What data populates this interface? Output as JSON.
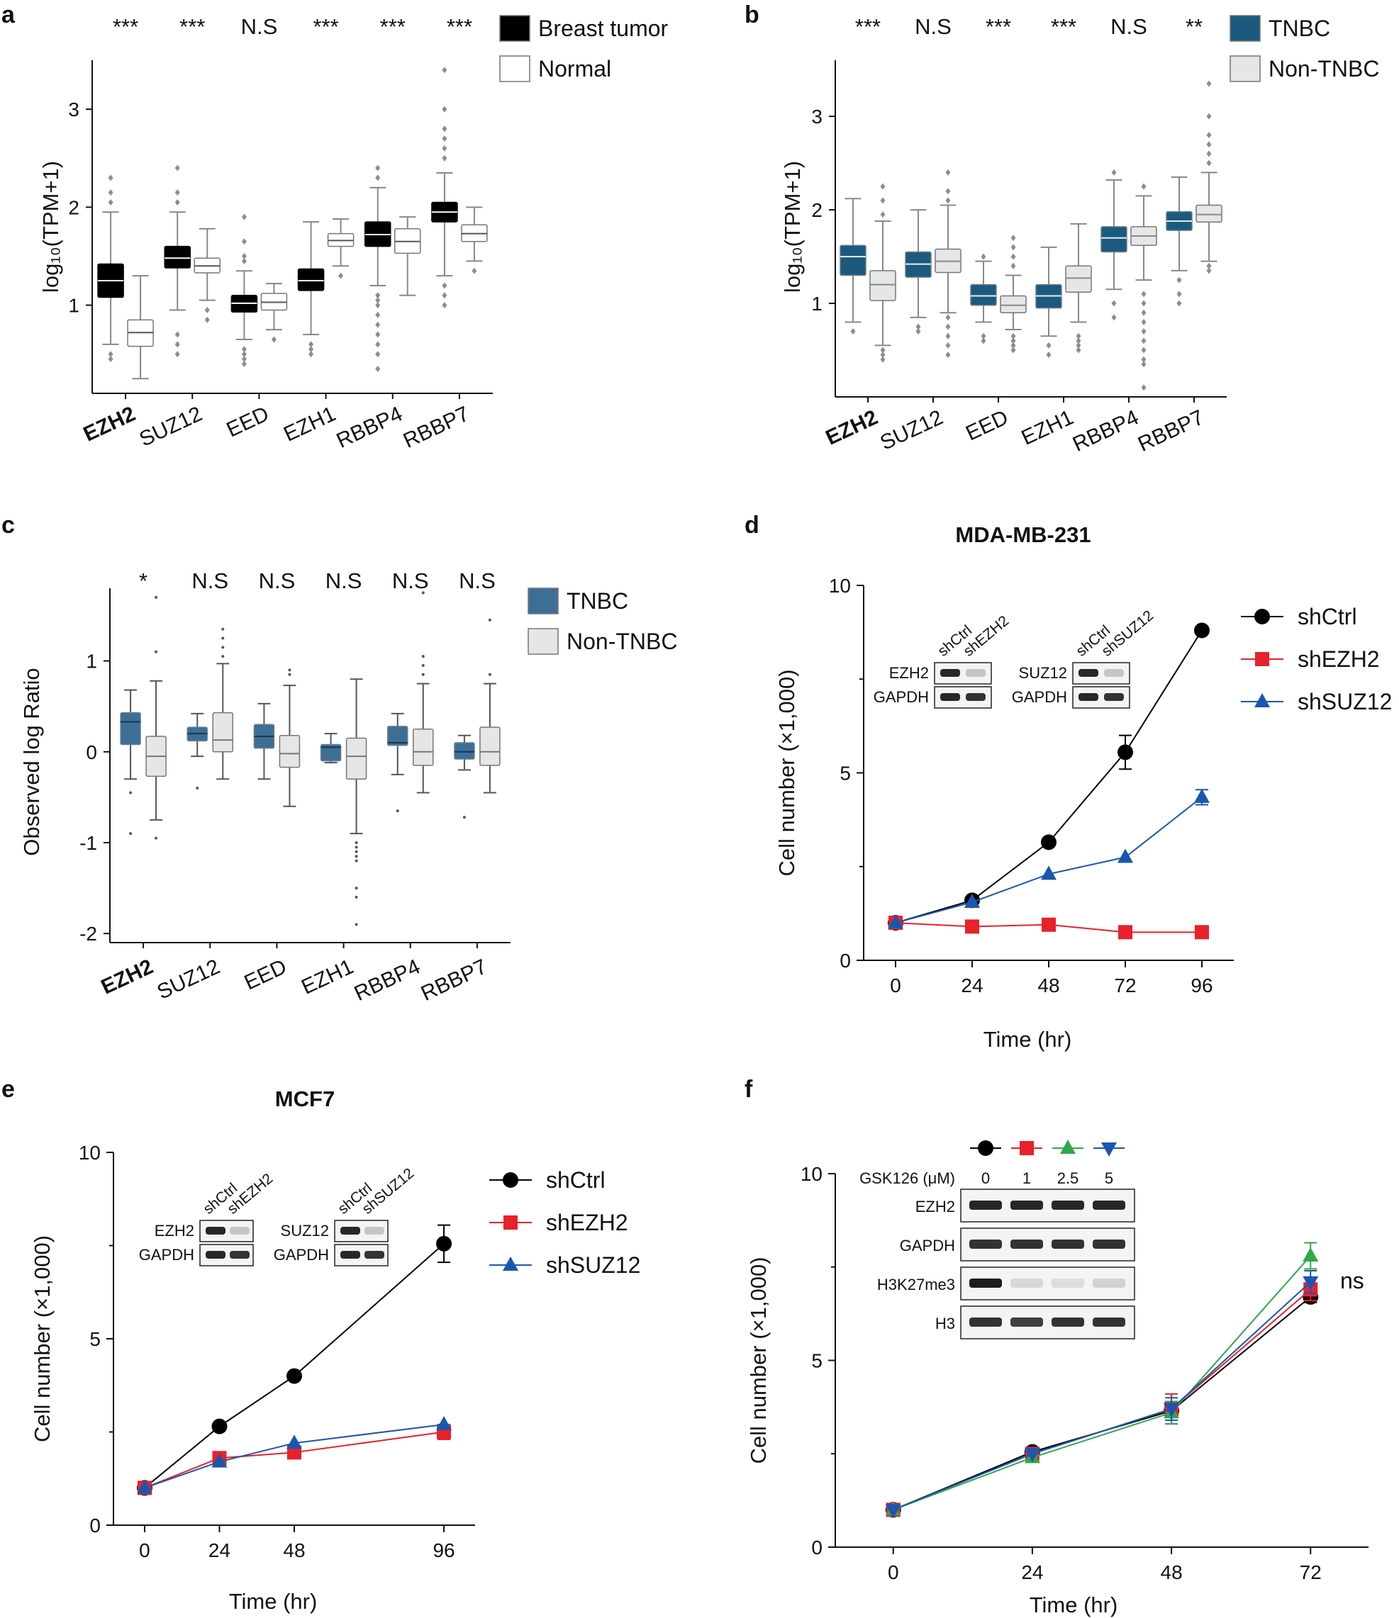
{
  "figure": {
    "panel_letters": [
      "a",
      "b",
      "c",
      "d",
      "e",
      "f"
    ]
  },
  "chart_data": [
    {
      "id": "a",
      "type": "box",
      "ylabel": "log₁₀(TPM+1)",
      "ylim": [
        0.1,
        3.5
      ],
      "yticks": [
        1,
        2,
        3
      ],
      "categories": [
        "EZH2",
        "SUZ12",
        "EED",
        "EZH1",
        "RBBP4",
        "RBBP7"
      ],
      "bold_category": "EZH2",
      "significance": [
        "***",
        "***",
        "N.S",
        "***",
        "***",
        "***"
      ],
      "legend": [
        "Breast tumor",
        "Normal"
      ],
      "colors": {
        "group1": "#000000",
        "group2": "#ffffff",
        "median1": "#ffffff",
        "median2": "#555555",
        "stroke": "#888888"
      },
      "series": [
        {
          "name": "Breast tumor",
          "boxes": [
            {
              "whislo": 0.6,
              "q1": 1.08,
              "med": 1.25,
              "q3": 1.42,
              "whishi": 1.95,
              "out": [
                0.5,
                0.45,
                2.05,
                2.15,
                2.3
              ]
            },
            {
              "whislo": 0.95,
              "q1": 1.38,
              "med": 1.48,
              "q3": 1.6,
              "whishi": 1.95,
              "out": [
                0.6,
                0.5,
                0.7,
                2.05,
                2.15,
                2.4
              ]
            },
            {
              "whislo": 0.65,
              "q1": 0.93,
              "med": 1.02,
              "q3": 1.1,
              "whishi": 1.35,
              "out": [
                0.4,
                0.45,
                0.5,
                0.55,
                1.45,
                1.5,
                1.65,
                1.9
              ]
            },
            {
              "whislo": 0.7,
              "q1": 1.15,
              "med": 1.25,
              "q3": 1.37,
              "whishi": 1.85,
              "out": [
                0.5,
                0.55,
                0.6
              ]
            },
            {
              "whislo": 1.2,
              "q1": 1.6,
              "med": 1.72,
              "q3": 1.85,
              "whishi": 2.2,
              "out": [
                0.35,
                0.5,
                0.6,
                0.7,
                0.8,
                0.9,
                1.0,
                1.05,
                1.1,
                2.3,
                2.4
              ]
            },
            {
              "whislo": 1.3,
              "q1": 1.85,
              "med": 1.95,
              "q3": 2.05,
              "whishi": 2.35,
              "out": [
                1.0,
                1.1,
                1.2,
                2.5,
                2.6,
                2.7,
                2.8,
                3.0,
                3.4
              ]
            }
          ]
        },
        {
          "name": "Normal",
          "boxes": [
            {
              "whislo": 0.25,
              "q1": 0.58,
              "med": 0.72,
              "q3": 0.85,
              "whishi": 1.3,
              "out": []
            },
            {
              "whislo": 1.05,
              "q1": 1.33,
              "med": 1.4,
              "q3": 1.48,
              "whishi": 1.78,
              "out": [
                0.85,
                0.95
              ]
            },
            {
              "whislo": 0.75,
              "q1": 0.95,
              "med": 1.03,
              "q3": 1.12,
              "whishi": 1.22,
              "out": [
                0.65
              ]
            },
            {
              "whislo": 1.4,
              "q1": 1.6,
              "med": 1.66,
              "q3": 1.73,
              "whishi": 1.88,
              "out": [
                1.3
              ]
            },
            {
              "whislo": 1.1,
              "q1": 1.53,
              "med": 1.65,
              "q3": 1.78,
              "whishi": 1.9,
              "out": []
            },
            {
              "whislo": 1.45,
              "q1": 1.65,
              "med": 1.73,
              "q3": 1.82,
              "whishi": 2.0,
              "out": [
                1.35
              ]
            }
          ]
        }
      ]
    },
    {
      "id": "b",
      "type": "box",
      "ylabel": "log₁₀(TPM+1)",
      "ylim": [
        0.0,
        3.6
      ],
      "yticks": [
        1,
        2,
        3
      ],
      "categories": [
        "EZH2",
        "SUZ12",
        "EED",
        "EZH1",
        "RBBP4",
        "RBBP7"
      ],
      "bold_category": "EZH2",
      "significance": [
        "***",
        "N.S",
        "***",
        "***",
        "N.S",
        "**"
      ],
      "legend": [
        "TNBC",
        "Non-TNBC"
      ],
      "colors": {
        "group1": "#1b5a7e",
        "group2": "#e4e6e7",
        "median1": "#e8eef2",
        "median2": "#888888",
        "stroke": "#888888"
      },
      "series": [
        {
          "name": "TNBC",
          "boxes": [
            {
              "whislo": 0.8,
              "q1": 1.3,
              "med": 1.5,
              "q3": 1.62,
              "whishi": 2.12,
              "out": [
                0.7
              ]
            },
            {
              "whislo": 0.85,
              "q1": 1.28,
              "med": 1.42,
              "q3": 1.55,
              "whishi": 2.0,
              "out": [
                0.75,
                0.7
              ]
            },
            {
              "whislo": 0.8,
              "q1": 0.98,
              "med": 1.08,
              "q3": 1.2,
              "whishi": 1.45,
              "out": [
                0.6,
                0.65,
                1.5
              ]
            },
            {
              "whislo": 0.65,
              "q1": 0.95,
              "med": 1.08,
              "q3": 1.2,
              "whishi": 1.6,
              "out": [
                0.45,
                0.55
              ]
            },
            {
              "whislo": 1.15,
              "q1": 1.55,
              "med": 1.7,
              "q3": 1.82,
              "whishi": 2.32,
              "out": [
                0.85,
                1.0,
                2.4
              ]
            },
            {
              "whislo": 1.35,
              "q1": 1.78,
              "med": 1.88,
              "q3": 1.98,
              "whishi": 2.35,
              "out": [
                1.0,
                1.1,
                1.25
              ]
            }
          ]
        },
        {
          "name": "Non-TNBC",
          "boxes": [
            {
              "whislo": 0.55,
              "q1": 1.03,
              "med": 1.2,
              "q3": 1.35,
              "whishi": 1.88,
              "out": [
                0.4,
                0.45,
                0.5,
                1.95,
                2.1,
                2.25
              ]
            },
            {
              "whislo": 0.9,
              "q1": 1.33,
              "med": 1.45,
              "q3": 1.58,
              "whishi": 2.05,
              "out": [
                0.45,
                0.55,
                0.65,
                0.75,
                0.85,
                2.1,
                2.2,
                2.4
              ]
            },
            {
              "whislo": 0.72,
              "q1": 0.9,
              "med": 0.98,
              "q3": 1.08,
              "whishi": 1.3,
              "out": [
                0.5,
                0.55,
                0.6,
                0.65,
                1.4,
                1.5,
                1.6,
                1.7
              ]
            },
            {
              "whislo": 0.8,
              "q1": 1.12,
              "med": 1.27,
              "q3": 1.4,
              "whishi": 1.85,
              "out": [
                0.5,
                0.55,
                0.6,
                0.65
              ]
            },
            {
              "whislo": 1.25,
              "q1": 1.62,
              "med": 1.72,
              "q3": 1.82,
              "whishi": 2.15,
              "out": [
                0.1,
                0.35,
                0.4,
                0.5,
                0.6,
                0.7,
                0.8,
                0.9,
                1.0,
                1.1,
                2.25
              ]
            },
            {
              "whislo": 1.45,
              "q1": 1.87,
              "med": 1.95,
              "q3": 2.05,
              "whishi": 2.4,
              "out": [
                1.35,
                1.4,
                2.5,
                2.6,
                2.7,
                2.8,
                3.0,
                3.35
              ]
            }
          ]
        }
      ]
    },
    {
      "id": "c",
      "type": "box",
      "ylabel": "Observed log Ratio",
      "ylim": [
        -2.1,
        1.8
      ],
      "yticks": [
        -2,
        -1,
        0,
        1
      ],
      "categories": [
        "EZH2",
        "SUZ12",
        "EED",
        "EZH1",
        "RBBP4",
        "RBBP7"
      ],
      "bold_category": "EZH2",
      "significance": [
        "*",
        "N.S",
        "N.S",
        "N.S",
        "N.S",
        "N.S"
      ],
      "legend": [
        "TNBC",
        "Non-TNBC"
      ],
      "colors": {
        "group1": "#3d6f96",
        "group2": "#e4e6e7",
        "median1": "#1a3550",
        "median2": "#777777",
        "stroke": "#555555"
      },
      "series": [
        {
          "name": "TNBC",
          "boxes": [
            {
              "whislo": -0.3,
              "q1": 0.08,
              "med": 0.33,
              "q3": 0.43,
              "whishi": 0.68,
              "out": [
                -0.45,
                -0.9
              ]
            },
            {
              "whislo": -0.05,
              "q1": 0.12,
              "med": 0.2,
              "q3": 0.27,
              "whishi": 0.42,
              "out": [
                -0.4
              ]
            },
            {
              "whislo": -0.3,
              "q1": 0.04,
              "med": 0.17,
              "q3": 0.3,
              "whishi": 0.53,
              "out": []
            },
            {
              "whislo": -0.12,
              "q1": -0.1,
              "med": 0.05,
              "q3": 0.08,
              "whishi": 0.2,
              "out": []
            },
            {
              "whislo": -0.25,
              "q1": 0.07,
              "med": 0.1,
              "q3": 0.28,
              "whishi": 0.42,
              "out": [
                -0.65
              ]
            },
            {
              "whislo": -0.2,
              "q1": -0.08,
              "med": 0.0,
              "q3": 0.1,
              "whishi": 0.18,
              "out": [
                -0.72
              ]
            }
          ]
        },
        {
          "name": "Non-TNBC",
          "boxes": [
            {
              "whislo": -0.75,
              "q1": -0.27,
              "med": -0.05,
              "q3": 0.17,
              "whishi": 0.78,
              "out": [
                -0.95,
                1.1,
                1.7
              ]
            },
            {
              "whislo": -0.3,
              "q1": 0.0,
              "med": 0.13,
              "q3": 0.43,
              "whishi": 0.97,
              "out": [
                1.05,
                1.15,
                1.25,
                1.35
              ]
            },
            {
              "whislo": -0.6,
              "q1": -0.17,
              "med": -0.02,
              "q3": 0.18,
              "whishi": 0.73,
              "out": [
                0.85,
                0.9
              ]
            },
            {
              "whislo": -0.9,
              "q1": -0.3,
              "med": -0.05,
              "q3": 0.15,
              "whishi": 0.8,
              "out": [
                -1.0,
                -1.05,
                -1.1,
                -1.15,
                -1.2,
                -1.5,
                -1.6,
                -1.9
              ]
            },
            {
              "whislo": -0.45,
              "q1": -0.15,
              "med": 0.0,
              "q3": 0.25,
              "whishi": 0.75,
              "out": [
                0.85,
                0.95,
                1.05,
                1.75
              ]
            },
            {
              "whislo": -0.45,
              "q1": -0.15,
              "med": 0.0,
              "q3": 0.27,
              "whishi": 0.75,
              "out": [
                0.85,
                1.45
              ]
            }
          ]
        }
      ]
    },
    {
      "id": "d",
      "type": "line",
      "title": "MDA-MB-231",
      "xlabel": "Time (hr)",
      "ylabel": "Cell number (×1,000)",
      "xlim": [
        -10,
        106
      ],
      "ylim": [
        0,
        10
      ],
      "xticks": [
        0,
        24,
        48,
        72,
        96
      ],
      "yticks": [
        0,
        5,
        10
      ],
      "series": [
        {
          "name": "shCtrl",
          "color": "#000000",
          "marker": "circle",
          "x": [
            0,
            24,
            48,
            72,
            96
          ],
          "y": [
            1.0,
            1.6,
            3.15,
            5.55,
            8.8
          ],
          "err": [
            0,
            0,
            0,
            0.45,
            0
          ]
        },
        {
          "name": "shEZH2",
          "color": "#e8212b",
          "marker": "square",
          "x": [
            0,
            24,
            48,
            72,
            96
          ],
          "y": [
            1.0,
            0.9,
            0.95,
            0.75,
            0.75
          ],
          "err": [
            0,
            0,
            0,
            0,
            0
          ]
        },
        {
          "name": "shSUZ12",
          "color": "#1a56b0",
          "marker": "triangle",
          "x": [
            0,
            24,
            48,
            72,
            96
          ],
          "y": [
            1.0,
            1.55,
            2.3,
            2.75,
            4.35
          ],
          "err": [
            0,
            0,
            0,
            0,
            0.2
          ]
        }
      ],
      "blot": {
        "left": {
          "lanes": [
            "shCtrl",
            "shEZH2"
          ],
          "rows": [
            "EZH2",
            "GAPDH"
          ]
        },
        "right": {
          "lanes": [
            "shCtrl",
            "shSUZ12"
          ],
          "rows": [
            "SUZ12",
            "GAPDH"
          ]
        }
      }
    },
    {
      "id": "e",
      "type": "line",
      "title": "MCF7",
      "xlabel": "Time (hr)",
      "ylabel": "Cell number (×1,000)",
      "xlim": [
        -10,
        106
      ],
      "ylim": [
        0,
        10
      ],
      "xticks": [
        0,
        24,
        48,
        96
      ],
      "yticks": [
        0,
        5,
        10
      ],
      "series": [
        {
          "name": "shCtrl",
          "color": "#000000",
          "marker": "circle",
          "x": [
            0,
            24,
            48,
            96
          ],
          "y": [
            1.0,
            2.65,
            4.0,
            7.55
          ],
          "err": [
            0,
            0,
            0,
            0.5
          ]
        },
        {
          "name": "shEZH2",
          "color": "#e8212b",
          "marker": "square",
          "x": [
            0,
            24,
            48,
            96
          ],
          "y": [
            1.0,
            1.8,
            1.95,
            2.5
          ],
          "err": [
            0,
            0,
            0,
            0.2
          ]
        },
        {
          "name": "shSUZ12",
          "color": "#1a56b0",
          "marker": "triangle",
          "x": [
            0,
            24,
            48,
            96
          ],
          "y": [
            1.0,
            1.7,
            2.2,
            2.7
          ],
          "err": [
            0,
            0,
            0,
            0
          ]
        }
      ],
      "blot": {
        "left": {
          "lanes": [
            "shCtrl",
            "shEZH2"
          ],
          "rows": [
            "EZH2",
            "GAPDH"
          ]
        },
        "right": {
          "lanes": [
            "shCtrl",
            "shSUZ12"
          ],
          "rows": [
            "SUZ12",
            "GAPDH"
          ]
        }
      }
    },
    {
      "id": "f",
      "type": "line",
      "xlabel": "Time (hr)",
      "ylabel": "Cell number (×1,000)",
      "xlim": [
        -10,
        82
      ],
      "ylim": [
        0,
        10
      ],
      "xticks": [
        0,
        24,
        48,
        72
      ],
      "yticks": [
        0,
        5,
        10
      ],
      "annotation": "ns",
      "series": [
        {
          "name": "GSK126 0",
          "color": "#000000",
          "marker": "circle",
          "x": [
            0,
            24,
            48,
            72
          ],
          "y": [
            1.0,
            2.55,
            3.65,
            6.7
          ],
          "err": [
            0,
            0,
            0,
            0.15
          ]
        },
        {
          "name": "GSK126 1",
          "color": "#e8212b",
          "marker": "square",
          "x": [
            0,
            24,
            48,
            72
          ],
          "y": [
            1.0,
            2.5,
            3.7,
            6.9
          ],
          "err": [
            0,
            0,
            0.4,
            0.3
          ]
        },
        {
          "name": "GSK126 2.5",
          "color": "#2ea84a",
          "marker": "triangle",
          "x": [
            0,
            24,
            48,
            72
          ],
          "y": [
            1.0,
            2.4,
            3.6,
            7.8
          ],
          "err": [
            0,
            0,
            0.3,
            0.35
          ]
        },
        {
          "name": "GSK126 5",
          "color": "#1a56b0",
          "marker": "triangle-down",
          "x": [
            0,
            24,
            48,
            72
          ],
          "y": [
            1.0,
            2.5,
            3.7,
            7.1
          ],
          "err": [
            0,
            0,
            0.3,
            0.3
          ]
        }
      ],
      "blot": {
        "treatment_label": "GSK126 (μM)",
        "doses": [
          "0",
          "1",
          "2.5",
          "5"
        ],
        "rows": [
          "EZH2",
          "GAPDH",
          "H3K27me3",
          "H3"
        ]
      }
    }
  ]
}
